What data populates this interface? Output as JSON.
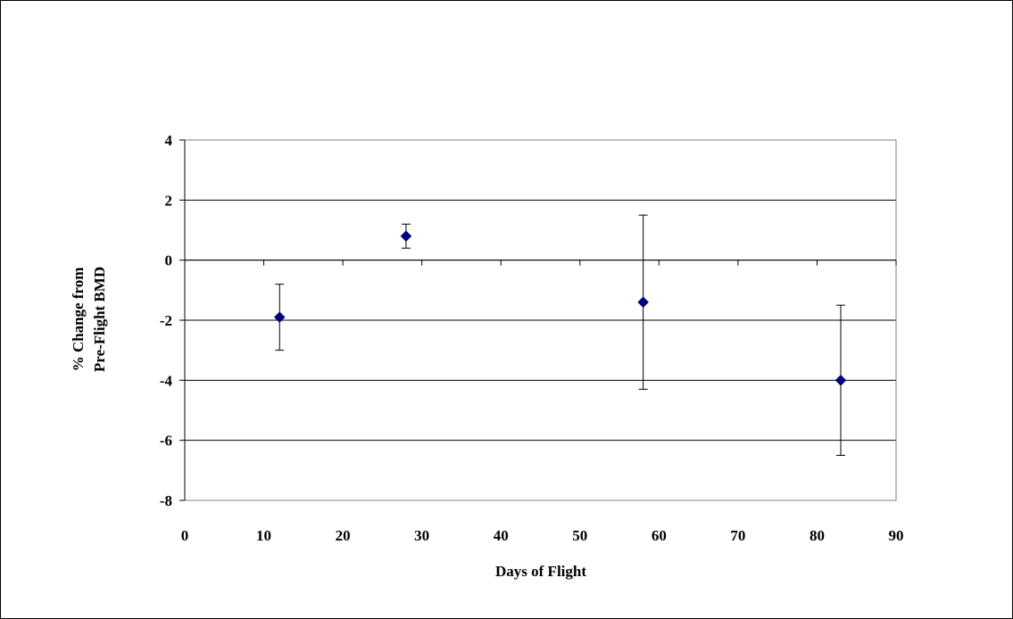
{
  "chart_data": {
    "type": "scatter",
    "title": "",
    "xlabel": "Days of Flight",
    "ylabel": [
      "% Change from",
      "Pre-Flight  BMD"
    ],
    "xlim": [
      0,
      90
    ],
    "ylim": [
      -8,
      4
    ],
    "xticks": [
      0,
      10,
      20,
      30,
      40,
      50,
      60,
      70,
      80,
      90
    ],
    "yticks": [
      4,
      2,
      0,
      -2,
      -4,
      -6,
      -8
    ],
    "grid": "horizontal",
    "legend": "none",
    "marker": "diamond",
    "marker_color": "#000080",
    "points": [
      {
        "x": 12,
        "y": -1.9,
        "err_low": -3.0,
        "err_high": -0.8
      },
      {
        "x": 28,
        "y": 0.8,
        "err_low": 0.4,
        "err_high": 1.2
      },
      {
        "x": 58,
        "y": -1.4,
        "err_low": -4.3,
        "err_high": 1.5
      },
      {
        "x": 83,
        "y": -4.0,
        "err_low": -6.5,
        "err_high": -1.5
      }
    ]
  }
}
